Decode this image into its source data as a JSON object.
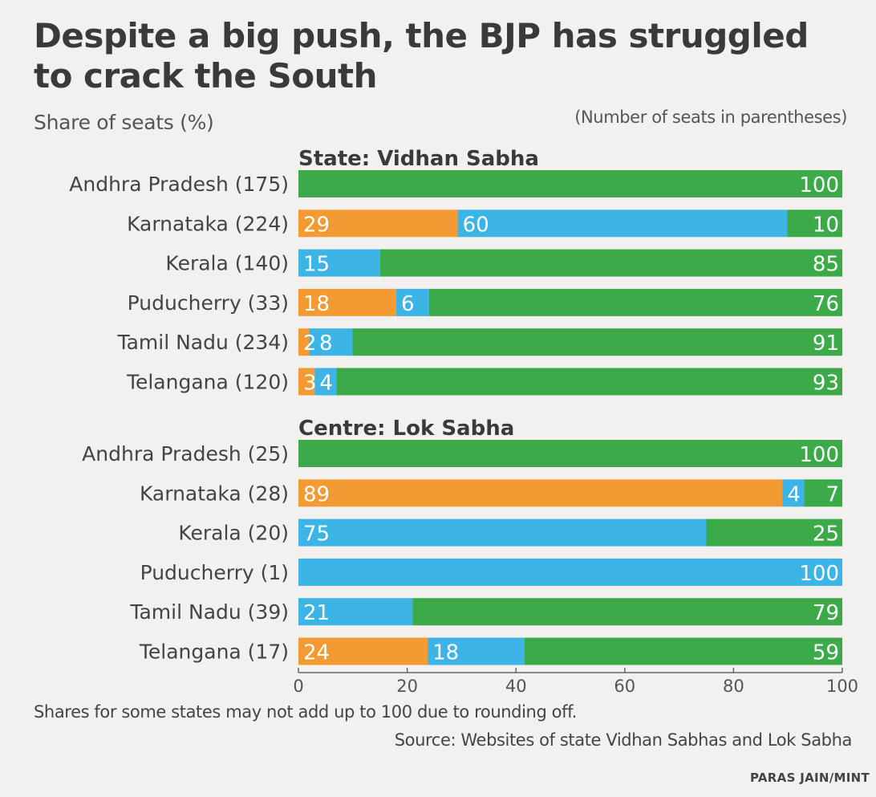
{
  "title": "Despite a big push, the BJP has struggled to crack the South",
  "subtitle": "Share of seats (%)",
  "note": "(Number of seats in parentheses)",
  "footnote": "Shares for some states may not add up to 100 due to rounding off.",
  "source": "Source: Websites of state Vidhan Sabhas and Lok Sabha",
  "credit": "PARAS JAIN/MINT",
  "colors": {
    "orange": "#f39a32",
    "blue": "#3cb4e6",
    "green": "#3caa48"
  },
  "chart_data": {
    "type": "bar",
    "orientation": "horizontal",
    "stacked": true,
    "xlim": [
      0,
      100
    ],
    "xticks": [
      "0",
      "20",
      "40",
      "60",
      "80",
      "100"
    ],
    "grid": false,
    "series_colors": [
      "orange",
      "blue",
      "green"
    ],
    "sections": [
      {
        "title": "State: Vidhan Sabha",
        "rows": [
          {
            "label": "Andhra Pradesh (175)",
            "values": [
              0,
              0,
              100
            ],
            "labels": [
              "",
              "",
              "100"
            ]
          },
          {
            "label": "Karnataka (224)",
            "values": [
              29,
              60,
              10
            ],
            "labels": [
              "29",
              "60",
              "10"
            ]
          },
          {
            "label": "Kerala (140)",
            "values": [
              0,
              15,
              85
            ],
            "labels": [
              "",
              "15",
              "85"
            ]
          },
          {
            "label": "Puducherry (33)",
            "values": [
              18,
              6,
              76
            ],
            "labels": [
              "18",
              "6",
              "76"
            ]
          },
          {
            "label": "Tamil Nadu (234)",
            "values": [
              2,
              8,
              91
            ],
            "labels": [
              "2",
              "8",
              "91"
            ]
          },
          {
            "label": "Telangana (120)",
            "values": [
              3,
              4,
              93
            ],
            "labels": [
              "3",
              "4",
              "93"
            ]
          }
        ]
      },
      {
        "title": "Centre: Lok Sabha",
        "rows": [
          {
            "label": "Andhra Pradesh (25)",
            "values": [
              0,
              0,
              100
            ],
            "labels": [
              "",
              "",
              "100"
            ]
          },
          {
            "label": "Karnataka (28)",
            "values": [
              89,
              4,
              7
            ],
            "labels": [
              "89",
              "4",
              "7"
            ]
          },
          {
            "label": "Kerala (20)",
            "values": [
              0,
              75,
              25
            ],
            "labels": [
              "",
              "75",
              "25"
            ]
          },
          {
            "label": "Puducherry (1)",
            "values": [
              0,
              100,
              0
            ],
            "labels": [
              "",
              "100",
              ""
            ]
          },
          {
            "label": "Tamil Nadu (39)",
            "values": [
              0,
              21,
              79
            ],
            "labels": [
              "",
              "21",
              "79"
            ]
          },
          {
            "label": "Telangana (17)",
            "values": [
              24,
              18,
              59
            ],
            "labels": [
              "24",
              "18",
              "59"
            ]
          }
        ]
      }
    ]
  }
}
